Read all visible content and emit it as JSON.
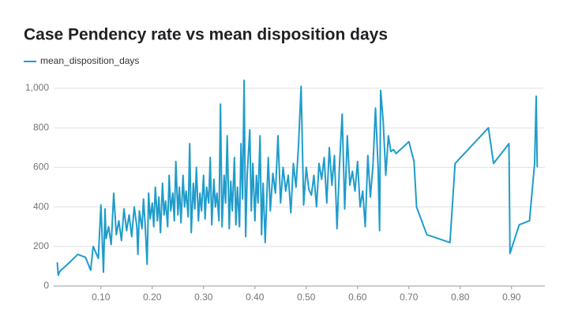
{
  "chart_data": {
    "type": "line",
    "title": "Case Pendency rate vs mean disposition days",
    "series": [
      {
        "name": "mean_disposition_days",
        "color": "#1f9ccb",
        "x": [
          0.015,
          0.017,
          0.02,
          0.035,
          0.055,
          0.07,
          0.08,
          0.085,
          0.09,
          0.095,
          0.1,
          0.105,
          0.108,
          0.11,
          0.115,
          0.12,
          0.125,
          0.13,
          0.135,
          0.14,
          0.145,
          0.15,
          0.155,
          0.16,
          0.165,
          0.17,
          0.172,
          0.175,
          0.18,
          0.183,
          0.186,
          0.19,
          0.193,
          0.196,
          0.2,
          0.203,
          0.206,
          0.21,
          0.213,
          0.216,
          0.22,
          0.223,
          0.226,
          0.23,
          0.233,
          0.236,
          0.24,
          0.243,
          0.246,
          0.25,
          0.253,
          0.256,
          0.26,
          0.263,
          0.266,
          0.27,
          0.273,
          0.276,
          0.28,
          0.283,
          0.286,
          0.29,
          0.293,
          0.296,
          0.3,
          0.303,
          0.306,
          0.31,
          0.313,
          0.316,
          0.32,
          0.323,
          0.326,
          0.33,
          0.333,
          0.336,
          0.34,
          0.343,
          0.346,
          0.35,
          0.353,
          0.356,
          0.36,
          0.363,
          0.366,
          0.37,
          0.373,
          0.376,
          0.379,
          0.382,
          0.385,
          0.39,
          0.393,
          0.396,
          0.4,
          0.403,
          0.406,
          0.41,
          0.413,
          0.416,
          0.42,
          0.423,
          0.426,
          0.43,
          0.435,
          0.44,
          0.445,
          0.45,
          0.455,
          0.46,
          0.465,
          0.47,
          0.475,
          0.48,
          0.485,
          0.49,
          0.495,
          0.5,
          0.505,
          0.51,
          0.515,
          0.52,
          0.525,
          0.53,
          0.535,
          0.54,
          0.545,
          0.55,
          0.555,
          0.56,
          0.565,
          0.57,
          0.575,
          0.58,
          0.585,
          0.59,
          0.595,
          0.6,
          0.605,
          0.61,
          0.615,
          0.62,
          0.625,
          0.63,
          0.635,
          0.64,
          0.643,
          0.645,
          0.65,
          0.655,
          0.66,
          0.665,
          0.67,
          0.675,
          0.7,
          0.71,
          0.715,
          0.735,
          0.78,
          0.79,
          0.855,
          0.865,
          0.895,
          0.897,
          0.915,
          0.935,
          0.945,
          0.948,
          0.95
        ],
        "values": [
          120,
          55,
          75,
          110,
          160,
          145,
          80,
          200,
          170,
          140,
          410,
          70,
          390,
          240,
          300,
          210,
          470,
          260,
          330,
          230,
          390,
          280,
          360,
          250,
          400,
          300,
          160,
          380,
          290,
          440,
          320,
          110,
          470,
          340,
          420,
          300,
          500,
          330,
          450,
          270,
          520,
          360,
          430,
          300,
          560,
          380,
          470,
          330,
          630,
          360,
          500,
          320,
          560,
          400,
          480,
          350,
          720,
          270,
          520,
          390,
          600,
          330,
          470,
          380,
          560,
          340,
          500,
          420,
          650,
          310,
          540,
          400,
          470,
          330,
          920,
          300,
          560,
          420,
          760,
          290,
          530,
          380,
          650,
          310,
          500,
          300,
          720,
          440,
          1040,
          250,
          560,
          790,
          380,
          620,
          330,
          560,
          420,
          760,
          260,
          520,
          220,
          430,
          650,
          380,
          570,
          470,
          760,
          420,
          600,
          480,
          560,
          370,
          620,
          500,
          710,
          1010,
          410,
          600,
          490,
          460,
          560,
          400,
          620,
          540,
          650,
          420,
          700,
          510,
          660,
          290,
          620,
          870,
          390,
          760,
          510,
          580,
          480,
          630,
          400,
          480,
          300,
          660,
          450,
          610,
          900,
          600,
          280,
          990,
          830,
          560,
          760,
          680,
          690,
          670,
          730,
          630,
          400,
          260,
          220,
          620,
          800,
          620,
          720,
          165,
          310,
          330,
          620,
          960,
          600
        ]
      }
    ],
    "xlim": [
      0.008,
      0.965
    ],
    "xticks": [
      {
        "value": 0.1,
        "label": "0.10"
      },
      {
        "value": 0.2,
        "label": "0.20"
      },
      {
        "value": 0.3,
        "label": "0.30"
      },
      {
        "value": 0.4,
        "label": "0.40"
      },
      {
        "value": 0.5,
        "label": "0.50"
      },
      {
        "value": 0.6,
        "label": "0.60"
      },
      {
        "value": 0.7,
        "label": "0.70"
      },
      {
        "value": 0.8,
        "label": "0.80"
      },
      {
        "value": 0.9,
        "label": "0.90"
      }
    ],
    "ylim": [
      0,
      1050
    ],
    "yticks": [
      0,
      200,
      400,
      600,
      800,
      {
        "value": 1000,
        "label": "1,000"
      }
    ],
    "grid": true
  }
}
